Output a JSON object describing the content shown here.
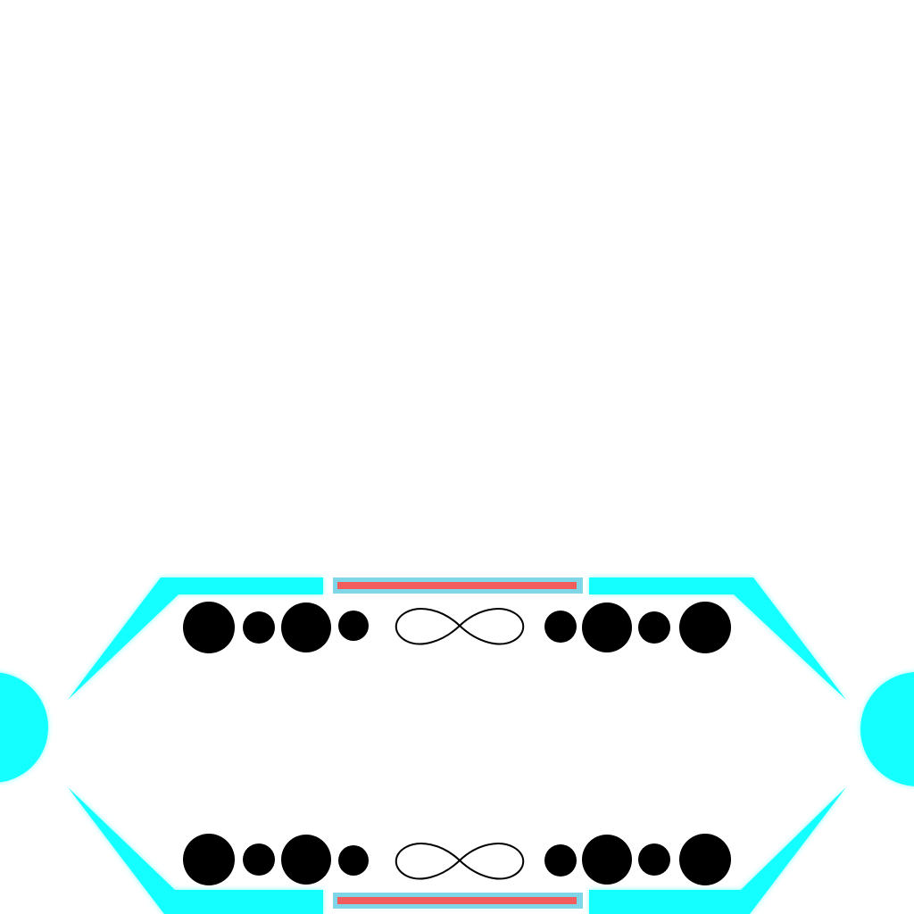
{
  "theme": {
    "accent": "#14ffff",
    "bar": "#f25c5c",
    "bar_frame": "#7fd6e6",
    "pip": "#000000",
    "background": "#ffffff"
  },
  "top_panel": {
    "left_pips": [
      "large",
      "small",
      "large",
      "small"
    ],
    "center_icon": "infinity-icon",
    "right_pips": [
      "small",
      "large",
      "small",
      "large"
    ],
    "bar_fill": 1.0
  },
  "bottom_panel": {
    "left_pips": [
      "large",
      "small",
      "large",
      "small"
    ],
    "center_icon": "infinity-icon",
    "right_pips": [
      "small",
      "large",
      "small",
      "large"
    ],
    "bar_fill": 1.0
  },
  "side_buttons": {
    "left_icon": "half-circle-icon",
    "right_icon": "half-circle-icon"
  }
}
